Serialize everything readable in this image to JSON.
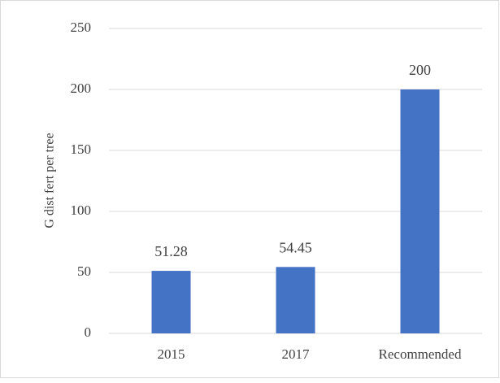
{
  "chart_data": {
    "type": "bar",
    "y_label": "G dist fert per tree",
    "categories": [
      "2015",
      "2017",
      "Recommended"
    ],
    "values": [
      51.28,
      54.45,
      200
    ],
    "color": "#4472c4",
    "ylim": [
      0,
      250
    ],
    "yticks": [
      0,
      50,
      100,
      150,
      200,
      250
    ],
    "grid": true,
    "data_labels": true
  }
}
